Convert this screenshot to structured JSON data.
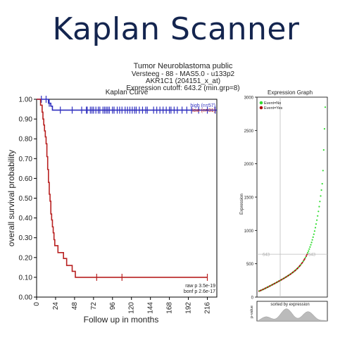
{
  "header": {
    "brand": "Kaplan Scanner",
    "title": "Tumor Neuroblastoma public",
    "line2": "Versteeg - 88 - MAS5.0 - u133p2",
    "line3": "AKR1C1 (204151_x_at)",
    "line4": "Expression cutoff: 643.2 (min.grp=8)"
  },
  "chart_data": [
    {
      "type": "line",
      "title": "Kaplan Curve",
      "xlabel": "Follow up in months",
      "ylabel": "overall survival probability",
      "xlim": [
        0,
        228
      ],
      "ylim": [
        0,
        1
      ],
      "x_ticks": [
        "0",
        "24",
        "48",
        "72",
        "96",
        "120",
        "144",
        "168",
        "192",
        "216"
      ],
      "y_ticks": [
        "0.00",
        "0.10",
        "0.20",
        "0.30",
        "0.40",
        "0.50",
        "0.60",
        "0.70",
        "0.80",
        "0.90",
        "1.00"
      ],
      "legend": {
        "position": "top-right",
        "entries": [
          "high (n=57)",
          "low (n=31)"
        ]
      },
      "annotations": [
        "raw p 3.5e-19",
        "bonf p 2.6e-17"
      ],
      "series": [
        {
          "name": "high (n=57)",
          "color": "#2f2fbf",
          "steps": [
            [
              0,
              1.0
            ],
            [
              15,
              0.98
            ],
            [
              18,
              0.965
            ],
            [
              20,
              0.945
            ],
            [
              228,
              0.945
            ]
          ],
          "censored": [
            [
              6,
              1.0
            ],
            [
              12,
              1.0
            ],
            [
              16,
              0.98
            ],
            [
              30,
              0.945
            ],
            [
              45,
              0.945
            ],
            [
              57,
              0.945
            ],
            [
              63,
              0.945
            ],
            [
              64,
              0.945
            ],
            [
              68,
              0.945
            ],
            [
              70,
              0.945
            ],
            [
              72,
              0.945
            ],
            [
              75,
              0.945
            ],
            [
              78,
              0.945
            ],
            [
              80,
              0.945
            ],
            [
              84,
              0.945
            ],
            [
              86,
              0.945
            ],
            [
              88,
              0.945
            ],
            [
              90,
              0.945
            ],
            [
              92,
              0.945
            ],
            [
              96,
              0.945
            ],
            [
              98,
              0.945
            ],
            [
              102,
              0.945
            ],
            [
              105,
              0.945
            ],
            [
              108,
              0.945
            ],
            [
              112,
              0.945
            ],
            [
              115,
              0.945
            ],
            [
              118,
              0.945
            ],
            [
              121,
              0.945
            ],
            [
              124,
              0.945
            ],
            [
              126,
              0.945
            ],
            [
              130,
              0.945
            ],
            [
              134,
              0.945
            ],
            [
              138,
              0.945
            ],
            [
              140,
              0.945
            ],
            [
              148,
              0.945
            ],
            [
              152,
              0.945
            ],
            [
              156,
              0.945
            ],
            [
              160,
              0.945
            ],
            [
              164,
              0.945
            ],
            [
              168,
              0.945
            ],
            [
              170,
              0.945
            ],
            [
              174,
              0.945
            ],
            [
              178,
              0.945
            ],
            [
              184,
              0.945
            ],
            [
              190,
              0.945
            ],
            [
              196,
              0.945
            ],
            [
              205,
              0.945
            ],
            [
              216,
              0.945
            ],
            [
              226,
              0.945
            ]
          ]
        },
        {
          "name": "low (n=31)",
          "color": "#b82020",
          "steps": [
            [
              0,
              1.0
            ],
            [
              5,
              1.0
            ],
            [
              5,
              0.97
            ],
            [
              7,
              0.97
            ],
            [
              7,
              0.935
            ],
            [
              8,
              0.935
            ],
            [
              8,
              0.9
            ],
            [
              9,
              0.9
            ],
            [
              9,
              0.87
            ],
            [
              10,
              0.87
            ],
            [
              10,
              0.84
            ],
            [
              11,
              0.84
            ],
            [
              11,
              0.81
            ],
            [
              12,
              0.81
            ],
            [
              12,
              0.775
            ],
            [
              13,
              0.775
            ],
            [
              13,
              0.71
            ],
            [
              14,
              0.71
            ],
            [
              14,
              0.645
            ],
            [
              15,
              0.645
            ],
            [
              15,
              0.58
            ],
            [
              16,
              0.58
            ],
            [
              16,
              0.52
            ],
            [
              17,
              0.52
            ],
            [
              17,
              0.485
            ],
            [
              18,
              0.485
            ],
            [
              18,
              0.42
            ],
            [
              19,
              0.42
            ],
            [
              19,
              0.39
            ],
            [
              20,
              0.39
            ],
            [
              20,
              0.355
            ],
            [
              21,
              0.355
            ],
            [
              21,
              0.325
            ],
            [
              22,
              0.325
            ],
            [
              22,
              0.29
            ],
            [
              23,
              0.29
            ],
            [
              23,
              0.26
            ],
            [
              27,
              0.26
            ],
            [
              27,
              0.225
            ],
            [
              34,
              0.225
            ],
            [
              34,
              0.195
            ],
            [
              38,
              0.195
            ],
            [
              38,
              0.16
            ],
            [
              45,
              0.16
            ],
            [
              45,
              0.13
            ],
            [
              49,
              0.13
            ],
            [
              49,
              0.1
            ],
            [
              216,
              0.1
            ]
          ],
          "censored": [
            [
              76,
              0.1
            ],
            [
              108,
              0.1
            ],
            [
              216,
              0.1
            ]
          ]
        }
      ]
    },
    {
      "type": "scatter",
      "title": "Expression Graph",
      "ylabel": "Expression",
      "xlabel": "sorted by expression",
      "ylim": [
        0,
        3000
      ],
      "y_ticks": [
        "0",
        "500",
        "1000",
        "1500",
        "2000",
        "2500",
        "3000"
      ],
      "cutoff": 643,
      "cutoff_labels": [
        "643",
        "643"
      ],
      "legend": {
        "position": "top-left",
        "entries": [
          "Event=No",
          "Event=Yes"
        ]
      },
      "sub_ylabel": "p-value",
      "colors": {
        "no": "#33dd33",
        "yes": "#aa1111"
      }
    }
  ]
}
